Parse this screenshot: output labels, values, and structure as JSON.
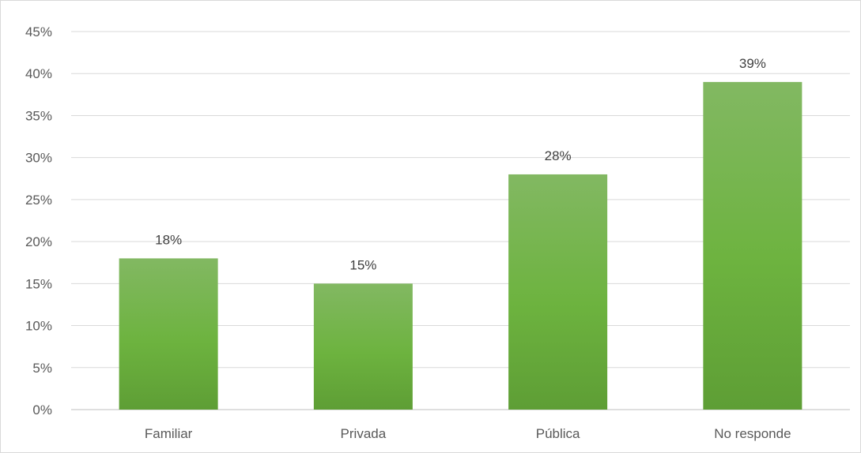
{
  "chart_data": {
    "type": "bar",
    "title": "",
    "xlabel": "",
    "ylabel": "",
    "categories": [
      "Familiar",
      "Privada",
      "Pública",
      "No responde"
    ],
    "values": [
      18,
      15,
      28,
      39
    ],
    "data_labels": [
      "18%",
      "15%",
      "28%",
      "39%"
    ],
    "ylim": [
      0,
      45
    ],
    "y_ticks": [
      0,
      5,
      10,
      15,
      20,
      25,
      30,
      35,
      40,
      45
    ],
    "y_tick_labels": [
      "0%",
      "5%",
      "10%",
      "15%",
      "20%",
      "25%",
      "30%",
      "35%",
      "40%",
      "45%"
    ],
    "grid": true,
    "legend": "none",
    "colors": {
      "bar_top": "#82b862",
      "bar_mid": "#6db33f",
      "bar_bottom": "#5e9e35",
      "grid": "#d9d9d9",
      "text": "#595959"
    }
  }
}
